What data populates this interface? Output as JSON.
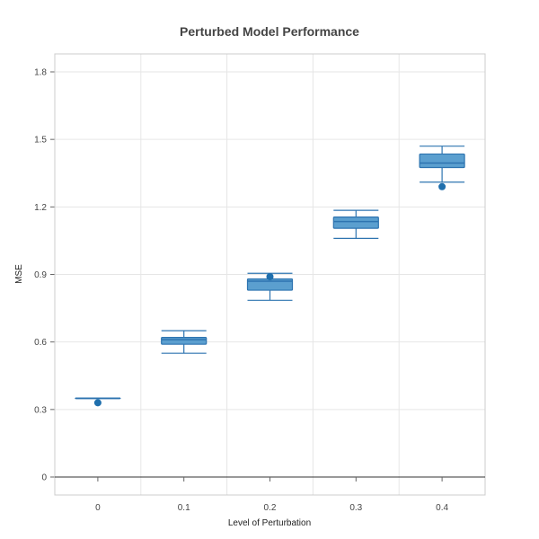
{
  "chart_data": {
    "type": "box",
    "title": "Perturbed Model Performance",
    "xlabel": "Level of Perturbation",
    "ylabel": "MSE",
    "ylim": [
      0,
      1.8
    ],
    "yticks": [
      "0",
      "0.3",
      "0.6",
      "0.9",
      "1.2",
      "1.5",
      "1.8"
    ],
    "categories": [
      "0",
      "0.1",
      "0.2",
      "0.3",
      "0.4"
    ],
    "grid": true,
    "colors": {
      "box_fill": "#5b9fcf",
      "box_stroke": "#2e74b0",
      "outlier": "#1f6fad",
      "grid": "#e6e6e6",
      "frame": "#cccccc",
      "axis": "#333333"
    },
    "boxes": [
      {
        "category": "0",
        "min": 0.35,
        "q1": 0.35,
        "median": 0.35,
        "q3": 0.35,
        "max": 0.35,
        "outliers": [
          0.33
        ]
      },
      {
        "category": "0.1",
        "min": 0.55,
        "q1": 0.59,
        "median": 0.61,
        "q3": 0.62,
        "max": 0.65,
        "outliers": []
      },
      {
        "category": "0.2",
        "min": 0.785,
        "q1": 0.83,
        "median": 0.87,
        "q3": 0.88,
        "max": 0.905,
        "outliers": [
          0.89
        ]
      },
      {
        "category": "0.3",
        "min": 1.06,
        "q1": 1.105,
        "median": 1.135,
        "q3": 1.155,
        "max": 1.185,
        "outliers": []
      },
      {
        "category": "0.4",
        "min": 1.31,
        "q1": 1.375,
        "median": 1.395,
        "q3": 1.435,
        "max": 1.47,
        "outliers": [
          1.29
        ]
      }
    ]
  }
}
